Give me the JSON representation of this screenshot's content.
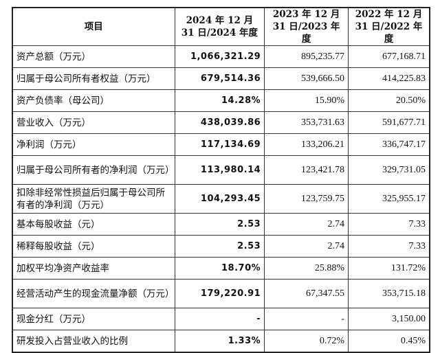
{
  "header": [
    "项目",
    "2024 年 12 月 31 日/2024 年度",
    "2023 年 12 月 31 日/2023 年度",
    "2022 年 12 月 31 日/2022 年度"
  ],
  "rows": [
    {
      "label": "资产总额（万元）",
      "v2024": "1,066,321.29",
      "v2023": "895,235.77",
      "v2022": "677,168.71",
      "lines": 1
    },
    {
      "label": "归属于母公司所有者权益（万元）",
      "v2024": "679,514.36",
      "v2023": "539,666.50",
      "v2022": "414,225.83",
      "lines": 1
    },
    {
      "label": "资产负债率（母公司）",
      "v2024": "14.28%",
      "v2023": "15.90%",
      "v2022": "20.50%",
      "lines": 1
    },
    {
      "label": "营业收入（万元）",
      "v2024": "438,039.86",
      "v2023": "353,731.63",
      "v2022": "591,677.71",
      "lines": 1
    },
    {
      "label": "净利润（万元）",
      "v2024": "117,134.69",
      "v2023": "133,206.21",
      "v2022": "336,747.17",
      "lines": 1
    },
    {
      "label": "归属于母公司所有者的净利润（万元）",
      "v2024": "113,980.14",
      "v2023": "123,421.78",
      "v2022": "329,731.05",
      "lines": 2
    },
    {
      "label": "扣除非经常性损益后归属于母公司所有者的净利润（万元）",
      "v2024": "104,293.45",
      "v2023": "123,759.75",
      "v2022": "325,955.17",
      "lines": 2
    },
    {
      "label": "基本每股收益（元）",
      "v2024": "2.53",
      "v2023": "2.74",
      "v2022": "7.33",
      "lines": 1
    },
    {
      "label": "稀释每股收益（元）",
      "v2024": "2.53",
      "v2023": "2.74",
      "v2022": "7.33",
      "lines": 1
    },
    {
      "label": "加权平均净资产收益率",
      "v2024": "18.70%",
      "v2023": "25.88%",
      "v2022": "131.72%",
      "lines": 1
    },
    {
      "label": "经营活动产生的现金流量净额（万元）",
      "v2024": "179,220.91",
      "v2023": "67,347.55",
      "v2022": "353,715.18",
      "lines": 2
    },
    {
      "label": "现金分红（万元）",
      "v2024": "-",
      "v2023": "-",
      "v2022": "3,150.00",
      "lines": 1
    },
    {
      "label": "研发投入占营业收入的比例",
      "v2024": "1.33%",
      "v2023": "0.72%",
      "v2022": "0.45%",
      "lines": 1
    }
  ]
}
